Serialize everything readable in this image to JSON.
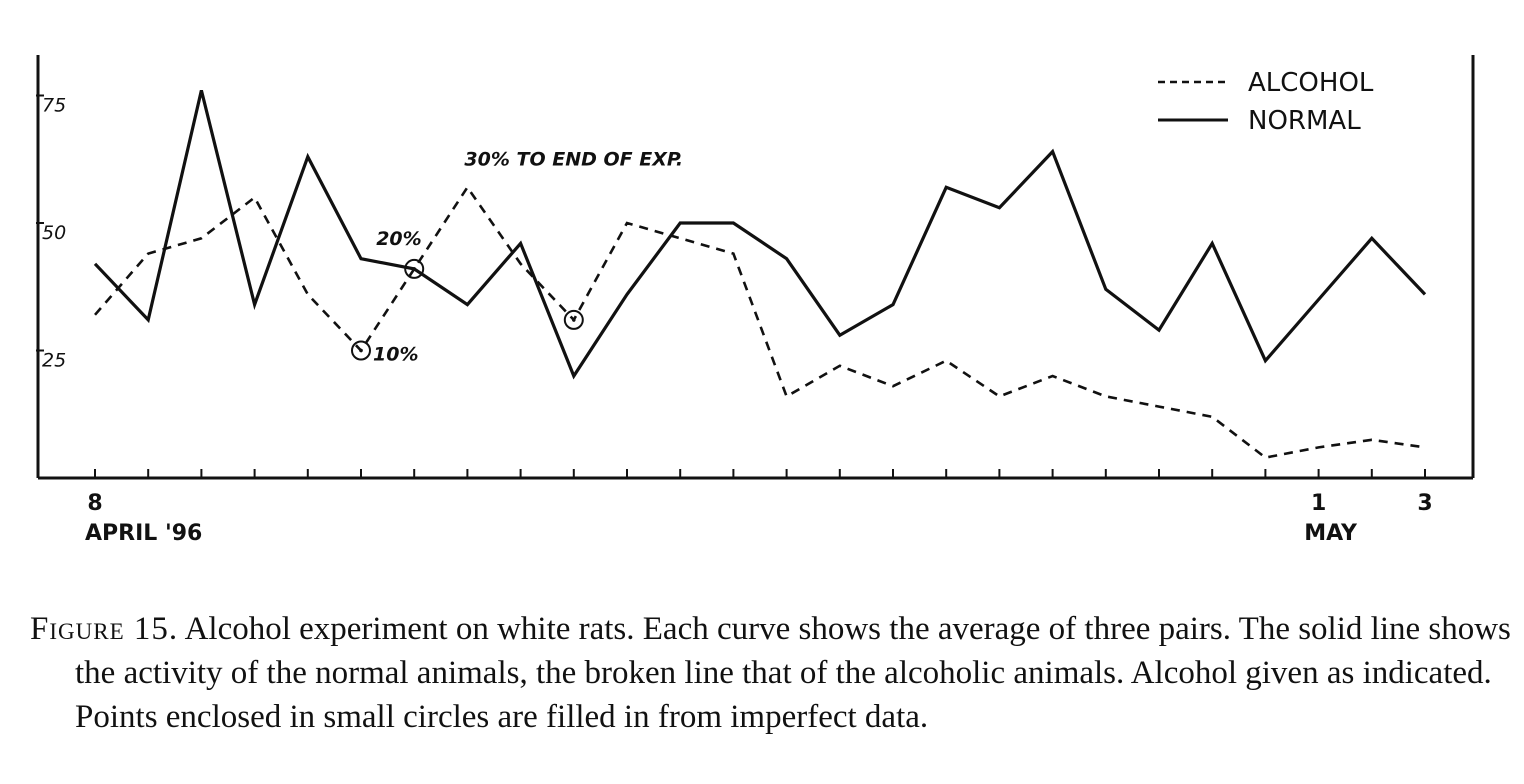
{
  "chart_data": {
    "type": "line",
    "title": "",
    "xlabel": "",
    "ylabel": "",
    "ylim": [
      0,
      80
    ],
    "y_ticks": [
      25,
      50,
      75
    ],
    "x_count": 26,
    "x_tick_labels": [
      {
        "index": 0,
        "label": "8"
      },
      {
        "index": 0,
        "label": "APRIL '96",
        "row": 2
      },
      {
        "index": 23,
        "label": "1"
      },
      {
        "index": 23,
        "label": "MAY",
        "row": 2
      },
      {
        "index": 25,
        "label": "3"
      }
    ],
    "grid": false,
    "legend_position": "top-right",
    "series": [
      {
        "name": "ALCOHOL",
        "style": "dashed",
        "values": [
          32,
          44,
          47,
          55,
          36,
          25,
          41,
          57,
          42,
          31,
          50,
          47,
          44,
          16,
          22,
          18,
          23,
          16,
          20,
          16,
          14,
          12,
          4,
          6,
          7.5,
          6
        ]
      },
      {
        "name": "NORMAL",
        "style": "solid",
        "values": [
          42,
          31,
          76,
          34,
          63,
          43,
          41,
          34,
          46,
          20,
          36,
          50,
          50,
          43,
          28,
          34,
          57,
          53,
          64,
          37,
          29,
          46,
          23,
          35,
          47,
          36
        ]
      }
    ],
    "annotations": [
      {
        "text": "30% TO END OF EXP.",
        "series": "ALCOHOL",
        "index": 7
      },
      {
        "text": "20%",
        "series": "ALCOHOL",
        "index": 6
      },
      {
        "text": "10%",
        "series": "ALCOHOL",
        "index": 5
      }
    ],
    "circled_points": [
      {
        "series": "ALCOHOL",
        "index": 5
      },
      {
        "series": "ALCOHOL",
        "index": 6
      },
      {
        "series": "ALCOHOL",
        "index": 9
      }
    ]
  },
  "caption": {
    "label": "Figure 15.",
    "text": "Alcohol experiment on white rats. Each curve shows the average of three pairs. The solid line shows the activity of the normal animals, the broken line that of the alcoholic animals. Alcohol given as indicated. Points enclosed in small circles are filled in from imperfect data."
  }
}
